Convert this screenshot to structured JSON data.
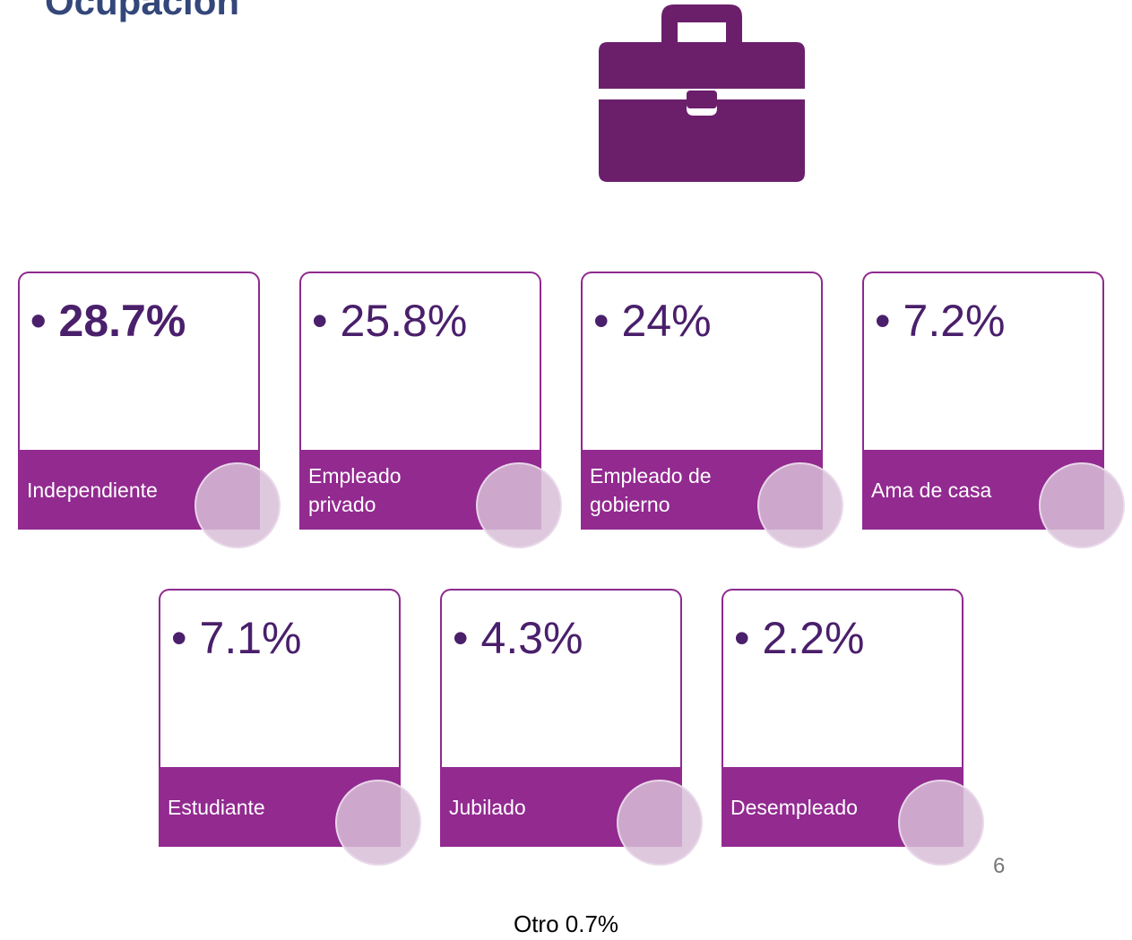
{
  "header": {
    "title": "Ocupación"
  },
  "cards": [
    {
      "value": "28.7%",
      "label": "Independiente"
    },
    {
      "value": "25.8%",
      "label": "Empleado privado"
    },
    {
      "value": "24%",
      "label": "Empleado de gobierno"
    },
    {
      "value": "7.2%",
      "label": "Ama de casa"
    },
    {
      "value": "7.1%",
      "label": "Estudiante"
    },
    {
      "value": "4.3%",
      "label": "Jubilado"
    },
    {
      "value": "2.2%",
      "label": "Desempleado"
    }
  ],
  "footer": {
    "note": "Otro 0.7%",
    "page_number": "6"
  }
}
